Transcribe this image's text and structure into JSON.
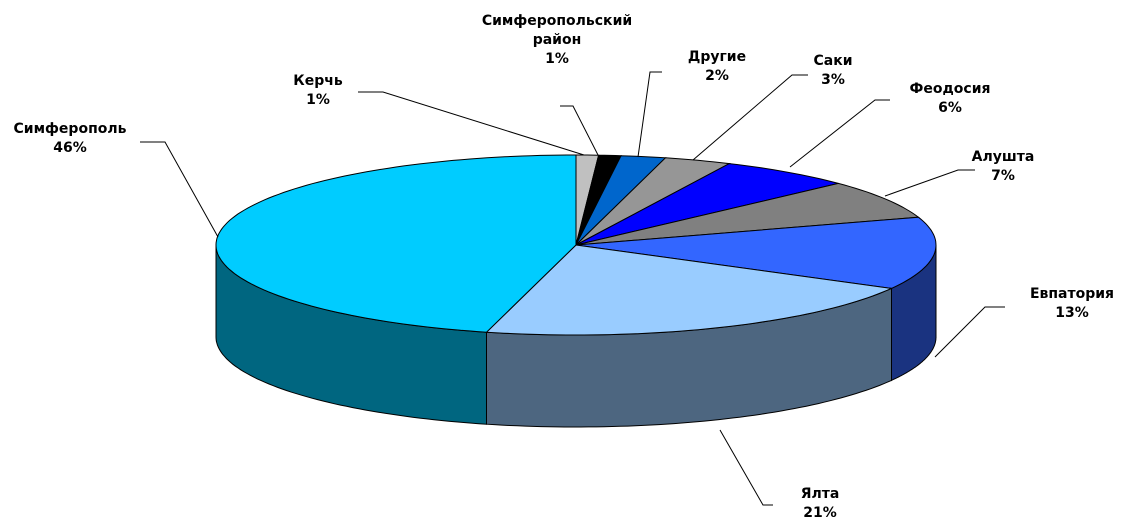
{
  "chart_data": {
    "type": "pie3d",
    "categories": [
      "Керчь",
      "Симферопольский район",
      "Другие",
      "Саки",
      "Феодосия",
      "Алушта",
      "Евпатория",
      "Ялта",
      "Симферополь"
    ],
    "values": [
      1,
      1,
      2,
      3,
      6,
      7,
      13,
      21,
      46
    ],
    "value_labels": [
      "1%",
      "1%",
      "2%",
      "3%",
      "6%",
      "7%",
      "13%",
      "21%",
      "46%"
    ],
    "colors": [
      "#c0c0c0",
      "#000000",
      "#0066cc",
      "#969696",
      "#0000ff",
      "#808080",
      "#3366ff",
      "#99ccff",
      "#00ccff"
    ]
  }
}
